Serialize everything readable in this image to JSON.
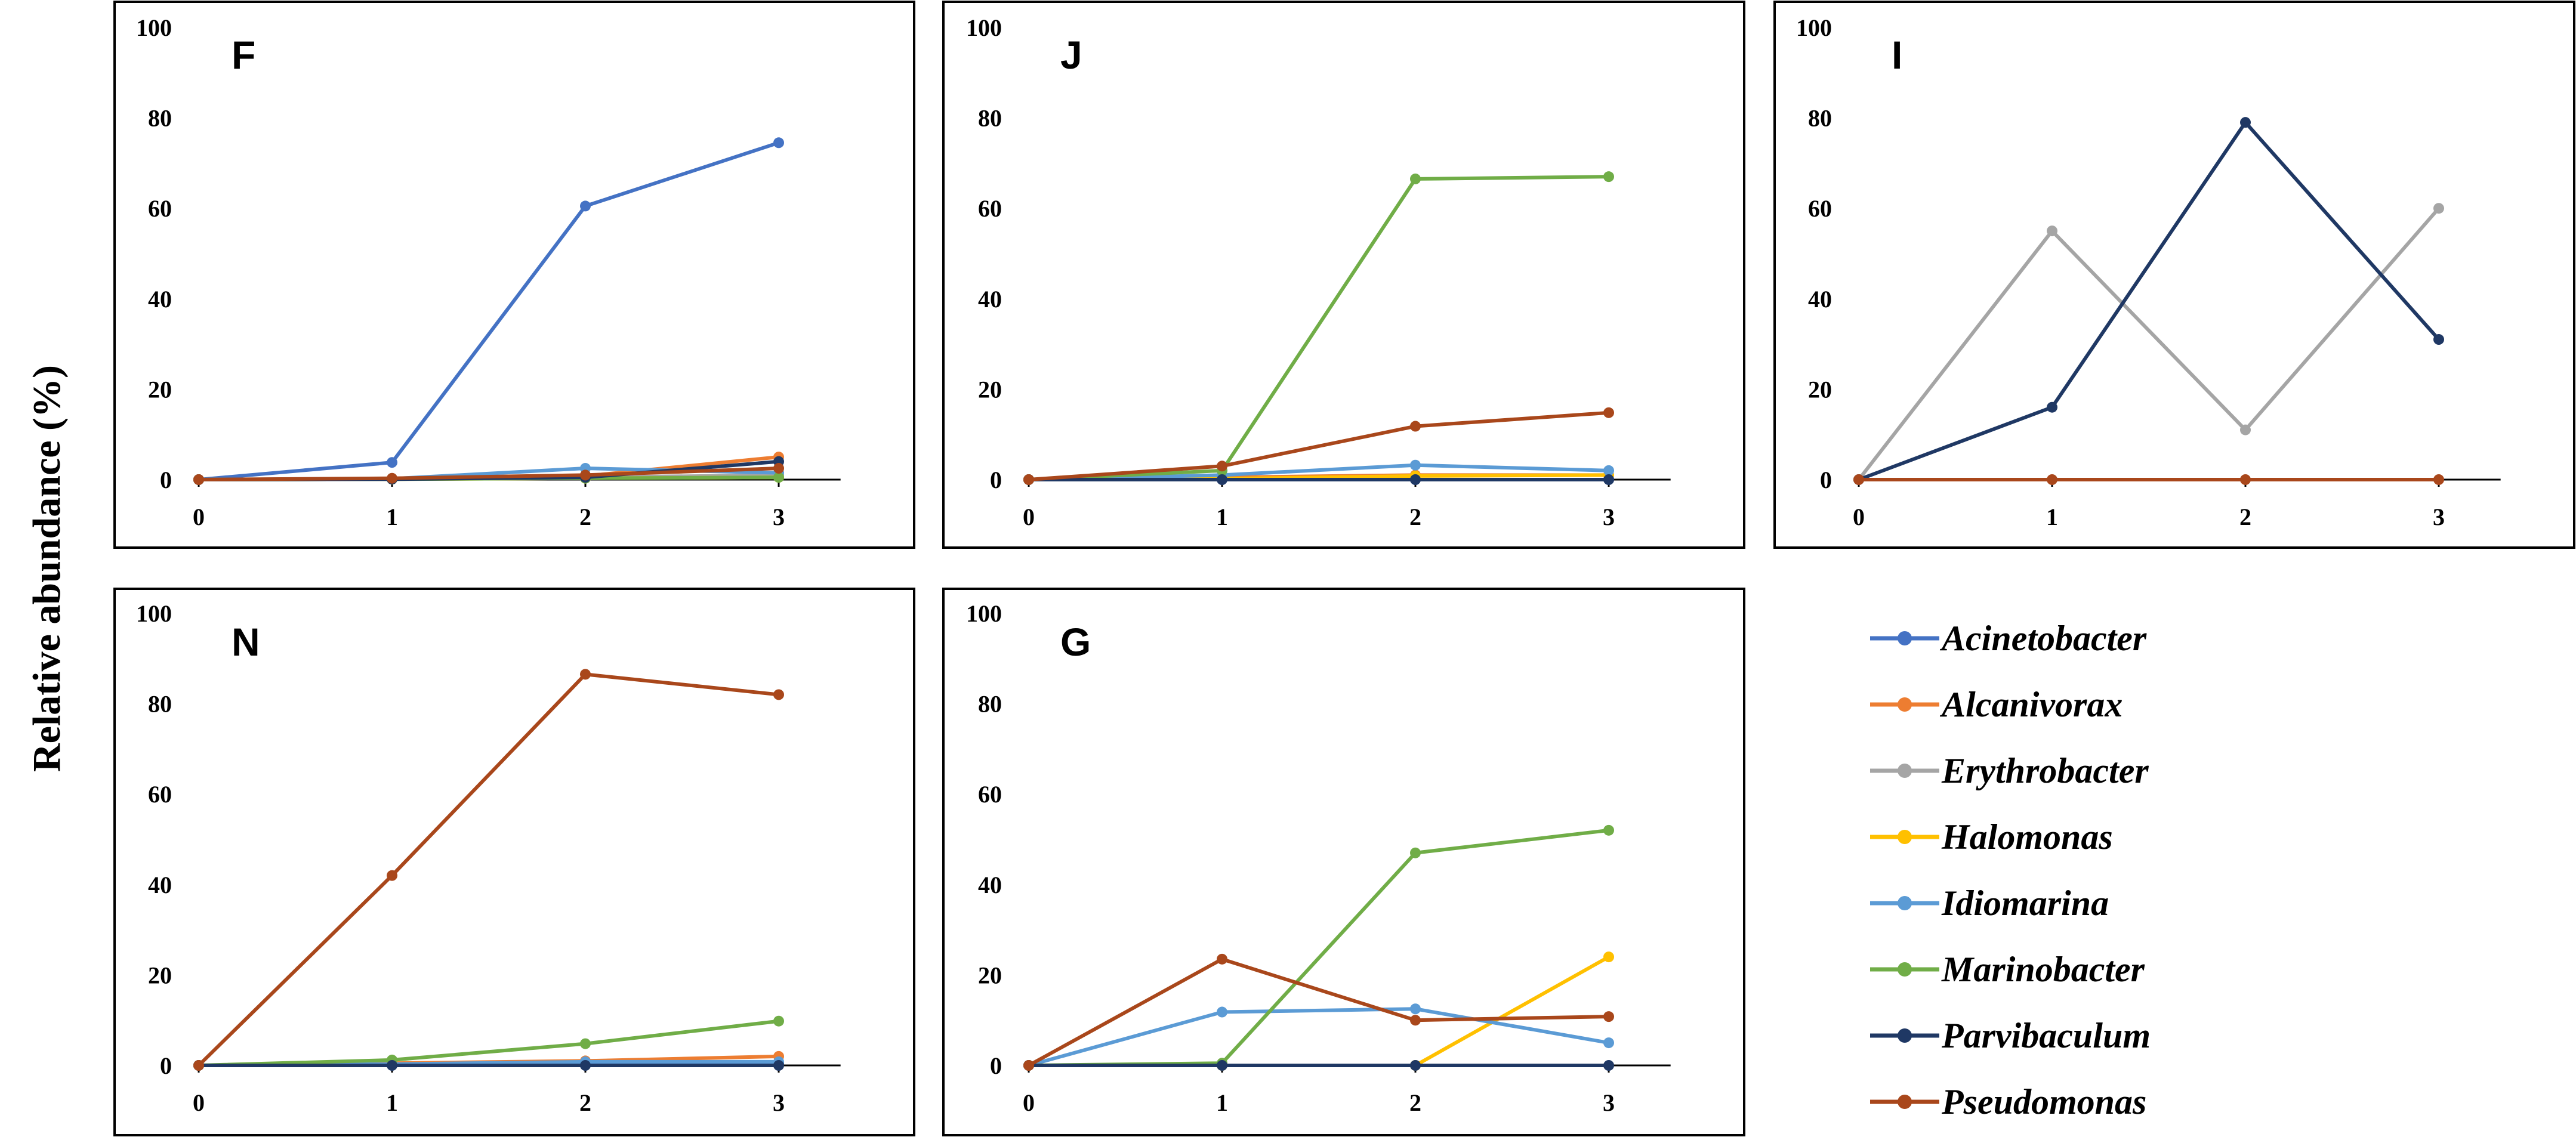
{
  "ylabel": "Relative abundance (%)",
  "colors": {
    "Acinetobacter": "#4472c4",
    "Alcanivorax": "#ed7d31",
    "Erythrobacter": "#a5a5a5",
    "Halomonas": "#ffc000",
    "Idiomarina": "#5b9bd5",
    "Marinobacter": "#70ad47",
    "Parvibaculum": "#1f3864",
    "Pseudomonas": "#a9471b"
  },
  "legend": [
    "Acinetobacter",
    "Alcanivorax",
    "Erythrobacter",
    "Halomonas",
    "Idiomarina",
    "Marinobacter",
    "Parvibaculum",
    "Pseudomonas"
  ],
  "chart_data": [
    {
      "type": "line",
      "title": "F",
      "x": [
        0,
        1,
        2,
        3
      ],
      "xticks": [
        "0",
        "1",
        "2",
        "3"
      ],
      "yticks": [
        "0",
        "20",
        "40",
        "60",
        "80",
        "100"
      ],
      "ylim": [
        0,
        100
      ],
      "series": [
        {
          "name": "Acinetobacter",
          "values": [
            0,
            3.8,
            60.5,
            74.5
          ]
        },
        {
          "name": "Alcanivorax",
          "values": [
            0,
            0.2,
            0.8,
            5
          ]
        },
        {
          "name": "Erythrobacter",
          "values": [
            0,
            0.1,
            0.5,
            1
          ]
        },
        {
          "name": "Halomonas",
          "values": [
            0,
            0.1,
            0.3,
            0.5
          ]
        },
        {
          "name": "Idiomarina",
          "values": [
            0,
            0.2,
            2.5,
            1.5
          ]
        },
        {
          "name": "Marinobacter",
          "values": [
            0,
            0.1,
            0.3,
            0.5
          ]
        },
        {
          "name": "Parvibaculum",
          "values": [
            0,
            0.1,
            0.5,
            4
          ]
        },
        {
          "name": "Pseudomonas",
          "values": [
            0,
            0.3,
            1,
            2.5
          ]
        }
      ]
    },
    {
      "type": "line",
      "title": "J",
      "x": [
        0,
        1,
        2,
        3
      ],
      "xticks": [
        "0",
        "1",
        "2",
        "3"
      ],
      "yticks": [
        "0",
        "20",
        "40",
        "60",
        "80",
        "100"
      ],
      "ylim": [
        0,
        100
      ],
      "series": [
        {
          "name": "Acinetobacter",
          "values": [
            0,
            0,
            0,
            0
          ]
        },
        {
          "name": "Alcanivorax",
          "values": [
            0,
            0.5,
            1,
            1
          ]
        },
        {
          "name": "Halomonas",
          "values": [
            0,
            0.2,
            0.8,
            1
          ]
        },
        {
          "name": "Idiomarina",
          "values": [
            0,
            1,
            3.2,
            2
          ]
        },
        {
          "name": "Marinobacter",
          "values": [
            0,
            2,
            66.5,
            67
          ]
        },
        {
          "name": "Parvibaculum",
          "values": [
            0,
            0,
            0,
            0
          ]
        },
        {
          "name": "Pseudomonas",
          "values": [
            0,
            3,
            11.8,
            14.8
          ]
        }
      ]
    },
    {
      "type": "line",
      "title": "I",
      "x": [
        0,
        1,
        2,
        3
      ],
      "xticks": [
        "0",
        "1",
        "2",
        "3"
      ],
      "yticks": [
        "0",
        "20",
        "40",
        "60",
        "80",
        "100"
      ],
      "ylim": [
        0,
        100
      ],
      "series": [
        {
          "name": "Erythrobacter",
          "values": [
            0,
            55,
            11,
            60
          ]
        },
        {
          "name": "Parvibaculum",
          "values": [
            0,
            16,
            79,
            31
          ]
        },
        {
          "name": "Pseudomonas",
          "values": [
            0,
            0,
            0,
            0
          ]
        }
      ]
    },
    {
      "type": "line",
      "title": "N",
      "x": [
        0,
        1,
        2,
        3
      ],
      "xticks": [
        "0",
        "1",
        "2",
        "3"
      ],
      "yticks": [
        "0",
        "20",
        "40",
        "60",
        "80",
        "100"
      ],
      "ylim": [
        0,
        100
      ],
      "series": [
        {
          "name": "Acinetobacter",
          "values": [
            0,
            0.2,
            0.5,
            0.5
          ]
        },
        {
          "name": "Alcanivorax",
          "values": [
            0,
            0.5,
            1,
            2
          ]
        },
        {
          "name": "Idiomarina",
          "values": [
            0,
            0.3,
            0.8,
            0.8
          ]
        },
        {
          "name": "Marinobacter",
          "values": [
            0,
            1.2,
            4.8,
            9.8
          ]
        },
        {
          "name": "Parvibaculum",
          "values": [
            0,
            0,
            0,
            0
          ]
        },
        {
          "name": "Pseudomonas",
          "values": [
            0,
            42,
            86.5,
            82
          ]
        }
      ]
    },
    {
      "type": "line",
      "title": "G",
      "x": [
        0,
        1,
        2,
        3
      ],
      "xticks": [
        "0",
        "1",
        "2",
        "3"
      ],
      "yticks": [
        "0",
        "20",
        "40",
        "60",
        "80",
        "100"
      ],
      "ylim": [
        0,
        100
      ],
      "series": [
        {
          "name": "Halomonas",
          "values": [
            0,
            0,
            0,
            24
          ]
        },
        {
          "name": "Idiomarina",
          "values": [
            0,
            11.8,
            12.5,
            5
          ]
        },
        {
          "name": "Marinobacter",
          "values": [
            0,
            0.5,
            47,
            52
          ]
        },
        {
          "name": "Parvibaculum",
          "values": [
            0,
            0,
            0,
            0
          ]
        },
        {
          "name": "Pseudomonas",
          "values": [
            0,
            23.5,
            10,
            10.8
          ]
        }
      ]
    }
  ]
}
